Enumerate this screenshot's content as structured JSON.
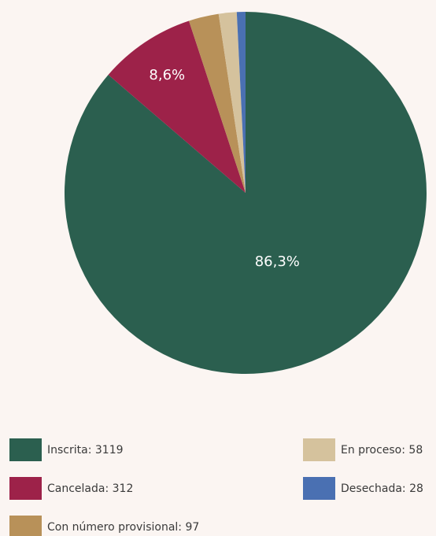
{
  "chart_data": {
    "type": "pie",
    "categories": [
      "Inscrita: 3119",
      "Cancelada: 312",
      "Con número provisional: 97",
      "En proceso: 58",
      "Desechada: 28"
    ],
    "values": [
      3119,
      312,
      97,
      58,
      28
    ],
    "value_labels": [
      "86,3%",
      "8,6%",
      null,
      null,
      null
    ],
    "colors": [
      "#2b5f4f",
      "#9d2249",
      "#b89159",
      "#d5c29d",
      "#4a70b2"
    ]
  }
}
